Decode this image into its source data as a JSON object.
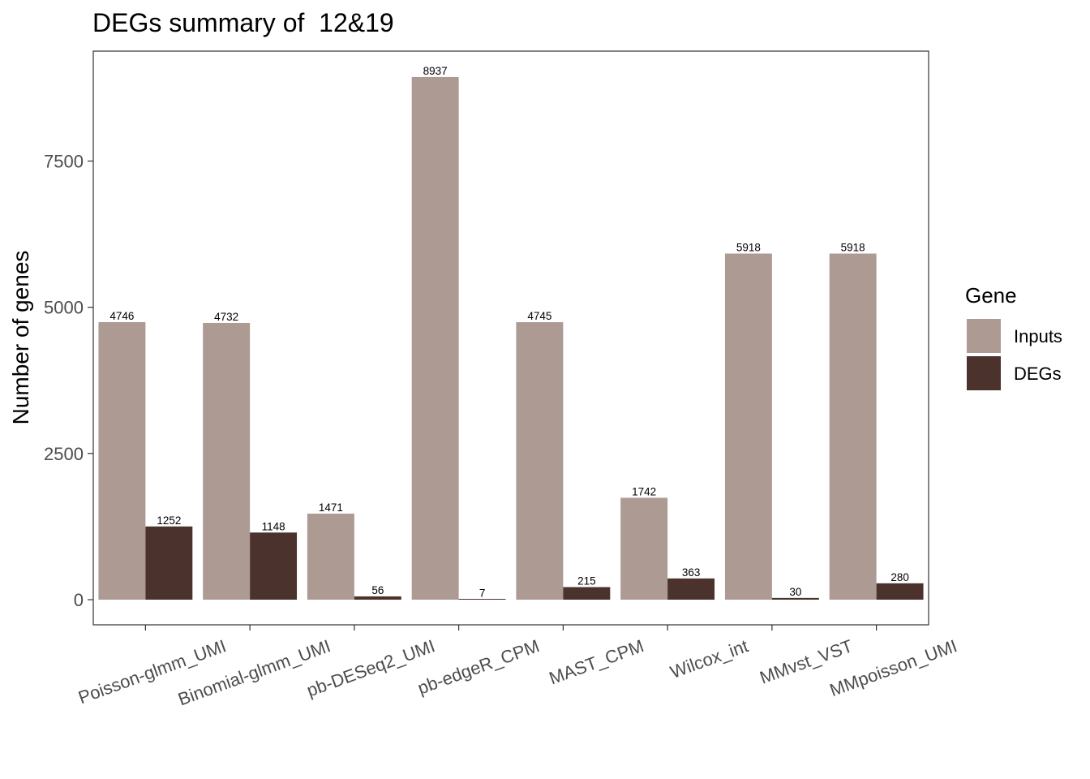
{
  "chart_data": {
    "type": "bar",
    "title": "DEGs summary of  12&19",
    "xlabel": "",
    "ylabel": "Number of genes",
    "ylim": [
      -430,
      9380
    ],
    "yticks": [
      0,
      2500,
      5000,
      7500
    ],
    "grid": false,
    "legend": {
      "title": "Gene",
      "position": "right"
    },
    "categories": [
      "Poisson-glmm_UMI",
      "Binomial-glmm_UMI",
      "pb-DESeq2_UMI",
      "pb-edgeR_CPM",
      "MAST_CPM",
      "Wilcox_int",
      "MMvst_VST",
      "MMpoisson_UMI"
    ],
    "series": [
      {
        "name": "Inputs",
        "color": "#ad9a92",
        "values": [
          4746,
          4732,
          1471,
          8937,
          4745,
          1742,
          5918,
          5918
        ]
      },
      {
        "name": "DEGs",
        "color": "#4c322c",
        "values": [
          1252,
          1148,
          56,
          7,
          215,
          363,
          30,
          280
        ]
      }
    ]
  }
}
